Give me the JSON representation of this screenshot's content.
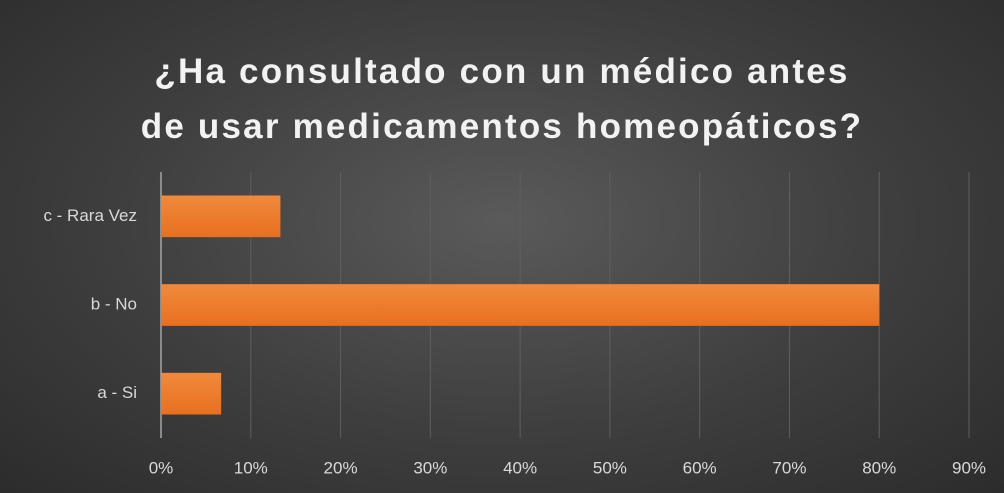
{
  "chart_data": {
    "type": "bar",
    "orientation": "horizontal",
    "title": "¿Ha consultado con un médico antes\nde usar medicamentos homeopáticos?",
    "categories": [
      "a - Si",
      "b - No",
      "c - Rara Vez"
    ],
    "values": [
      6.7,
      80,
      13.3
    ],
    "color": "#f08a3c",
    "xlim": [
      0,
      90
    ],
    "xticks": [
      {
        "value": 0,
        "label": "0%"
      },
      {
        "value": 10,
        "label": "10%"
      },
      {
        "value": 20,
        "label": "20%"
      },
      {
        "value": 30,
        "label": "30%"
      },
      {
        "value": 40,
        "label": "40%"
      },
      {
        "value": 50,
        "label": "50%"
      },
      {
        "value": 60,
        "label": "60%"
      },
      {
        "value": 70,
        "label": "70%"
      },
      {
        "value": 80,
        "label": "80%"
      },
      {
        "value": 90,
        "label": "90%"
      }
    ],
    "grid": true
  }
}
